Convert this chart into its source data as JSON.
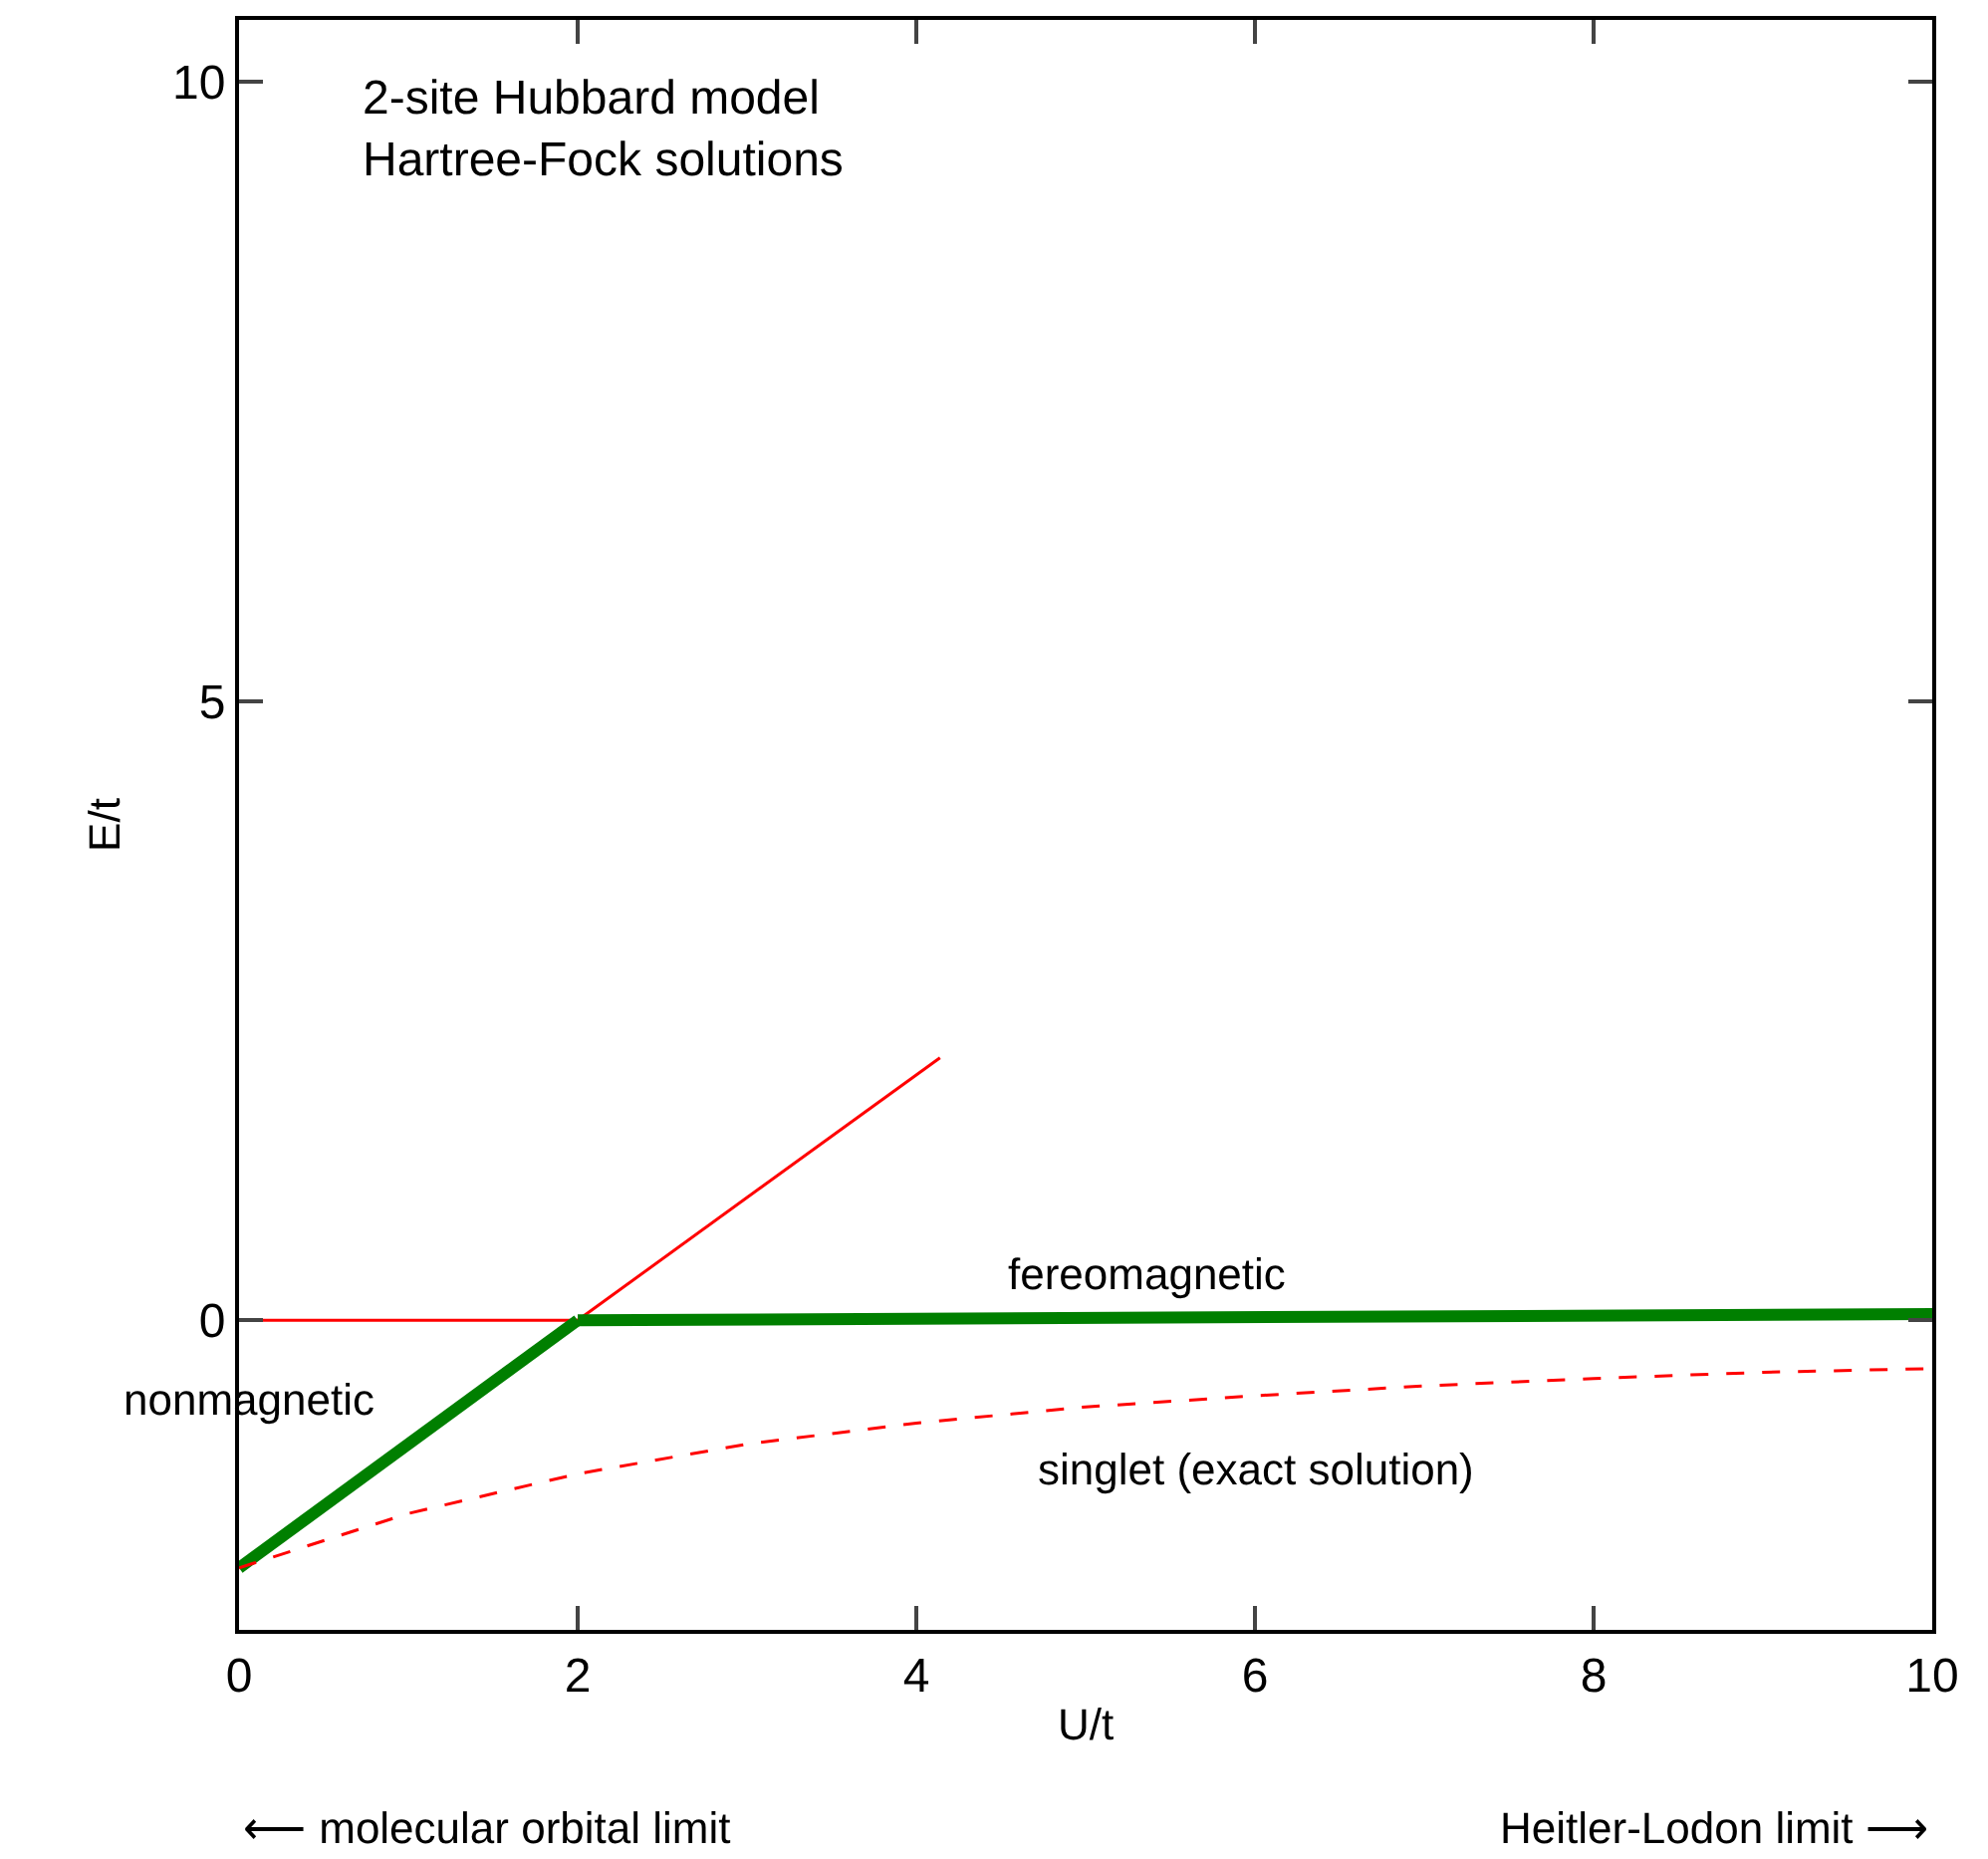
{
  "chart_data": {
    "type": "line",
    "title": "2-site Hubbard model\nHartree-Fock solutions",
    "xlabel": "U/t",
    "ylabel": "E/t",
    "xlim": [
      0,
      10
    ],
    "ylim": [
      -2.5,
      10.5
    ],
    "xticks": [
      0,
      2,
      4,
      6,
      8,
      10
    ],
    "yticks": [
      0,
      5,
      10
    ],
    "legend": false,
    "series": [
      {
        "color": "#ff0000",
        "x": [
          0,
          2
        ],
        "values": [
          0,
          0
        ],
        "line_style": "solid"
      },
      {
        "color": "#ff0000",
        "x": [
          2,
          4.14
        ],
        "values": [
          0,
          2.12
        ],
        "line_style": "solid"
      },
      {
        "name": "nonmagnetic",
        "color": "#007f00",
        "x": [
          0,
          2
        ],
        "values": [
          -2.0,
          0
        ],
        "line_style": "solid"
      },
      {
        "name": "fereomagnetic",
        "color": "#007f00",
        "x": [
          2,
          10
        ],
        "values": [
          0,
          0.05
        ],
        "line_style": "solid"
      },
      {
        "name": "singlet (exact solution)",
        "color": "#ff0000",
        "x": [
          0,
          1,
          2,
          3,
          4,
          5,
          6,
          7,
          8,
          9,
          10
        ],
        "values": [
          -2.0,
          -1.56,
          -1.24,
          -1.0,
          -0.83,
          -0.7,
          -0.61,
          -0.53,
          -0.47,
          -0.42,
          -0.39
        ],
        "line_style": "dashed"
      }
    ],
    "annotations": [
      "⟵ molecular orbital limit",
      "Heitler-Lodon limit ⟶"
    ]
  }
}
